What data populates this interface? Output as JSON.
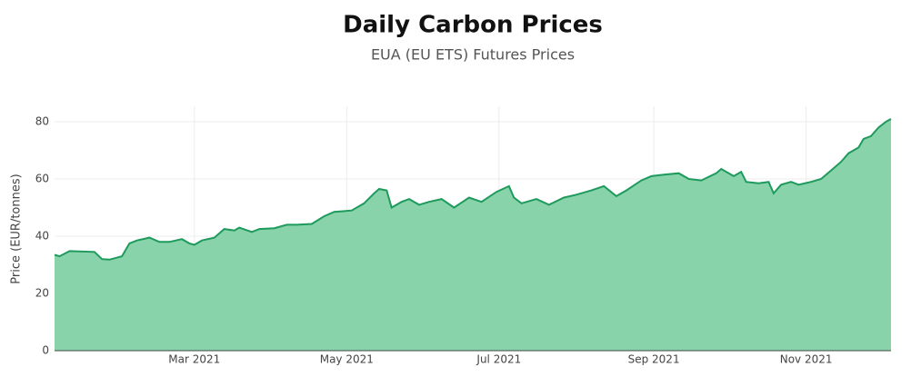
{
  "chart_data": {
    "type": "area",
    "title": "Daily Carbon Prices",
    "subtitle": "EUA (EU ETS) Futures Prices",
    "y_label": "Price (EUR/tonnes)",
    "x": [
      "2021-01-04",
      "2021-01-06",
      "2021-01-10",
      "2021-01-20",
      "2021-01-23",
      "2021-01-26",
      "2021-01-31",
      "2021-02-03",
      "2021-02-06",
      "2021-02-11",
      "2021-02-15",
      "2021-02-19",
      "2021-02-24",
      "2021-02-27",
      "2021-03-01",
      "2021-03-04",
      "2021-03-09",
      "2021-03-13",
      "2021-03-17",
      "2021-03-19",
      "2021-03-24",
      "2021-03-27",
      "2021-04-02",
      "2021-04-07",
      "2021-04-11",
      "2021-04-17",
      "2021-04-22",
      "2021-04-26",
      "2021-05-03",
      "2021-05-08",
      "2021-05-12",
      "2021-05-14",
      "2021-05-17",
      "2021-05-19",
      "2021-05-23",
      "2021-05-26",
      "2021-05-30",
      "2021-06-03",
      "2021-06-08",
      "2021-06-13",
      "2021-06-19",
      "2021-06-24",
      "2021-06-30",
      "2021-07-05",
      "2021-07-07",
      "2021-07-10",
      "2021-07-16",
      "2021-07-21",
      "2021-07-27",
      "2021-08-01",
      "2021-08-07",
      "2021-08-12",
      "2021-08-17",
      "2021-08-21",
      "2021-08-27",
      "2021-08-31",
      "2021-09-05",
      "2021-09-11",
      "2021-09-15",
      "2021-09-20",
      "2021-09-26",
      "2021-09-28",
      "2021-10-03",
      "2021-10-06",
      "2021-10-08",
      "2021-10-13",
      "2021-10-17",
      "2021-10-19",
      "2021-10-22",
      "2021-10-26",
      "2021-10-29",
      "2021-11-03",
      "2021-11-07",
      "2021-11-11",
      "2021-11-15",
      "2021-11-18",
      "2021-11-22",
      "2021-11-24",
      "2021-11-27",
      "2021-11-30",
      "2021-12-03",
      "2021-12-05"
    ],
    "values": [
      33.5,
      33,
      34.8,
      34.5,
      32,
      31.8,
      33,
      37.5,
      38.5,
      39.5,
      38,
      38,
      39,
      37.5,
      37,
      38.5,
      39.5,
      42.5,
      42,
      43,
      41.5,
      42.5,
      42.8,
      44,
      44,
      44.3,
      47,
      48.5,
      49,
      51.5,
      55,
      56.5,
      56,
      50,
      52,
      53,
      51,
      52,
      53,
      50,
      53.5,
      52,
      55.5,
      57.5,
      53.5,
      51.5,
      53,
      51,
      53.5,
      54.5,
      56,
      57.5,
      54,
      56,
      59.5,
      61,
      61.5,
      62,
      60,
      59.5,
      62,
      63.5,
      61,
      62.5,
      59,
      58.5,
      59,
      55,
      58,
      59,
      58,
      59,
      60,
      63,
      66,
      69,
      71,
      74,
      75,
      78,
      80,
      81
    ],
    "color": "#1e9a5c",
    "fill": "#88d3aa",
    "xlim": [
      "2021-01-04",
      "2021-12-05"
    ],
    "xticks": [
      {
        "value": "2021-03-01",
        "label": "Mar 2021"
      },
      {
        "value": "2021-05-01",
        "label": "May 2021"
      },
      {
        "value": "2021-07-01",
        "label": "Jul 2021"
      },
      {
        "value": "2021-09-01",
        "label": "Sep 2021"
      },
      {
        "value": "2021-11-01",
        "label": "Nov 2021"
      }
    ],
    "ylim": [
      0,
      85.4
    ],
    "yticks": [
      0,
      20,
      40,
      60,
      80
    ],
    "grid": true
  }
}
